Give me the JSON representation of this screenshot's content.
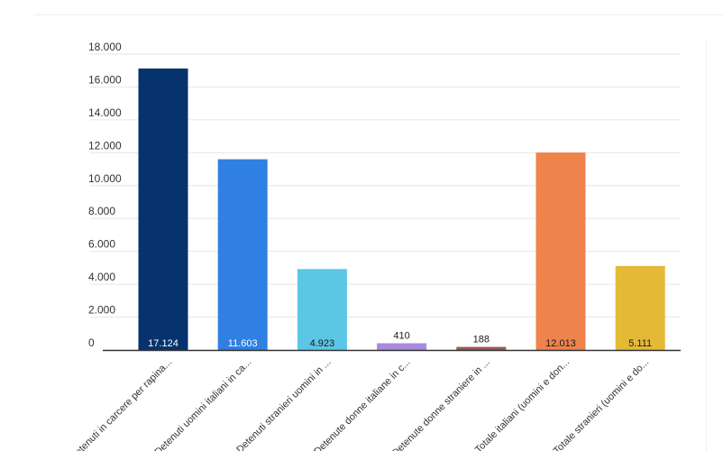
{
  "chart_data": {
    "type": "bar",
    "categories": [
      "Detenuti in carcere per rapina...",
      "Detenuti uomini italiani in ca...",
      "Detenuti stranieri uomini in ...",
      "Detenute donne italiane in c...",
      "Detenute donne straniere in ...",
      "Totale italiani (uomini e don...",
      "Totale stranieri (uomini e do..."
    ],
    "values": [
      17124,
      11603,
      4923,
      410,
      188,
      12013,
      5111
    ],
    "value_labels": [
      "17.124",
      "11.603",
      "4.923",
      "410",
      "188",
      "12.013",
      "5.111"
    ],
    "colors": [
      "#06336d",
      "#2f80e2",
      "#5bc6e6",
      "#a98be0",
      "#9c5a55",
      "#ee834b",
      "#e4b935"
    ],
    "label_colors": [
      "#ffffff",
      "#ffffff",
      "#1a1a1a",
      "#1a1a1a",
      "#1a1a1a",
      "#1a1a1a",
      "#1a1a1a"
    ],
    "label_inside": [
      true,
      true,
      true,
      false,
      false,
      true,
      true
    ],
    "y_ticks": [
      0,
      2000,
      4000,
      6000,
      8000,
      10000,
      12000,
      14000,
      16000,
      18000
    ],
    "y_tick_labels": [
      "0",
      "2.000",
      "4.000",
      "6.000",
      "8.000",
      "10.000",
      "12.000",
      "14.000",
      "16.000",
      "18.000"
    ],
    "ylim": [
      0,
      18000
    ],
    "title": "",
    "xlabel": "",
    "ylabel": "",
    "grid": true,
    "legend": "none"
  }
}
